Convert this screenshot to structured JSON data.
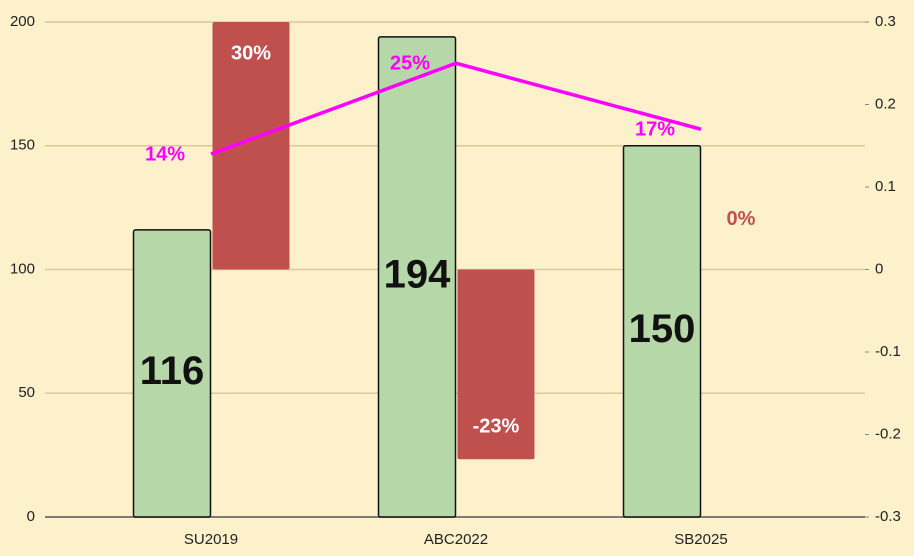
{
  "chart_data": {
    "type": "bar",
    "categories": [
      "SU2019",
      "ABC2022",
      "SB2025"
    ],
    "series": [
      {
        "type": "bar",
        "color": "#b6d7a8",
        "values": [
          116,
          194,
          150
        ]
      },
      {
        "type": "bar",
        "axis": "y2",
        "color": "#c0504d",
        "values": [
          0.3,
          -0.23,
          0
        ],
        "value_labels": [
          "30%",
          "-23%",
          "0%"
        ]
      },
      {
        "type": "line",
        "axis": "y2",
        "color": "#ff00ff",
        "values": [
          0.14,
          0.25,
          0.17
        ],
        "value_labels": [
          "14%",
          "25%",
          "17%"
        ]
      }
    ],
    "ylim": [
      0,
      200
    ],
    "yticks": [
      0,
      50,
      100,
      150,
      200
    ],
    "y2lim": [
      -0.3,
      0.3
    ],
    "y2ticks": [
      0.3,
      0.2,
      0.1,
      0,
      -0.1,
      -0.2,
      -0.3
    ],
    "grid": true
  }
}
